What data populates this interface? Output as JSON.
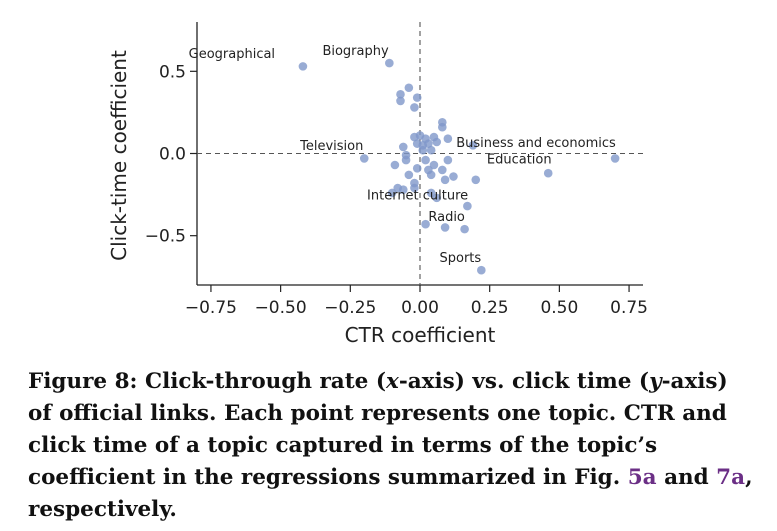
{
  "chart_data": {
    "type": "scatter",
    "title": "",
    "xlabel": "CTR coefficient",
    "ylabel": "Click-time coefficient",
    "xlim": [
      -0.8,
      0.8
    ],
    "ylim": [
      -0.8,
      0.8
    ],
    "xticks": [
      "−0.75",
      "−0.50",
      "−0.25",
      "0.00",
      "0.25",
      "0.50",
      "0.75"
    ],
    "xtick_values": [
      -0.75,
      -0.5,
      -0.25,
      0,
      0.25,
      0.5,
      0.75
    ],
    "yticks": [
      "0.5",
      "0.0",
      "−0.5"
    ],
    "ytick_values": [
      0.5,
      0,
      -0.5
    ],
    "reference_lines": {
      "x": 0,
      "y": 0
    },
    "point_color": "#7f97c9",
    "points": [
      {
        "x": -0.42,
        "y": 0.53
      },
      {
        "x": -0.11,
        "y": 0.55
      },
      {
        "x": -0.04,
        "y": 0.4
      },
      {
        "x": -0.07,
        "y": 0.36
      },
      {
        "x": -0.07,
        "y": 0.32
      },
      {
        "x": -0.01,
        "y": 0.34
      },
      {
        "x": -0.02,
        "y": 0.28
      },
      {
        "x": 0.08,
        "y": 0.19
      },
      {
        "x": 0.08,
        "y": 0.16
      },
      {
        "x": -0.02,
        "y": 0.1
      },
      {
        "x": 0.0,
        "y": 0.11
      },
      {
        "x": 0.02,
        "y": 0.09
      },
      {
        "x": 0.05,
        "y": 0.1
      },
      {
        "x": 0.1,
        "y": 0.09
      },
      {
        "x": -0.01,
        "y": 0.06
      },
      {
        "x": 0.01,
        "y": 0.05
      },
      {
        "x": 0.03,
        "y": 0.06
      },
      {
        "x": 0.06,
        "y": 0.07
      },
      {
        "x": -0.06,
        "y": 0.04
      },
      {
        "x": 0.01,
        "y": 0.02
      },
      {
        "x": 0.04,
        "y": 0.02
      },
      {
        "x": 0.19,
        "y": 0.05
      },
      {
        "x": -0.2,
        "y": -0.03
      },
      {
        "x": -0.05,
        "y": -0.01
      },
      {
        "x": -0.05,
        "y": -0.04
      },
      {
        "x": 0.02,
        "y": -0.04
      },
      {
        "x": 0.05,
        "y": -0.07
      },
      {
        "x": 0.1,
        "y": -0.04
      },
      {
        "x": -0.09,
        "y": -0.07
      },
      {
        "x": -0.01,
        "y": -0.09
      },
      {
        "x": 0.03,
        "y": -0.1
      },
      {
        "x": 0.08,
        "y": -0.1
      },
      {
        "x": 0.12,
        "y": -0.14
      },
      {
        "x": 0.2,
        "y": -0.16
      },
      {
        "x": -0.04,
        "y": -0.13
      },
      {
        "x": 0.04,
        "y": -0.13
      },
      {
        "x": 0.09,
        "y": -0.16
      },
      {
        "x": -0.02,
        "y": -0.18
      },
      {
        "x": -0.08,
        "y": -0.21
      },
      {
        "x": -0.06,
        "y": -0.22
      },
      {
        "x": -0.02,
        "y": -0.21
      },
      {
        "x": 0.04,
        "y": -0.24
      },
      {
        "x": -0.1,
        "y": -0.24
      },
      {
        "x": 0.06,
        "y": -0.27
      },
      {
        "x": 0.17,
        "y": -0.32
      },
      {
        "x": 0.02,
        "y": -0.43
      },
      {
        "x": 0.09,
        "y": -0.45
      },
      {
        "x": 0.16,
        "y": -0.46
      },
      {
        "x": 0.22,
        "y": -0.71
      },
      {
        "x": 0.46,
        "y": -0.12
      },
      {
        "x": 0.7,
        "y": -0.03
      }
    ],
    "annotations": [
      {
        "text": "Geographical",
        "x": -0.83,
        "y": 0.58
      },
      {
        "text": "Biography",
        "x": -0.35,
        "y": 0.6
      },
      {
        "text": "Television",
        "x": -0.43,
        "y": 0.02
      },
      {
        "text": "Business and economics",
        "x": 0.13,
        "y": 0.04
      },
      {
        "text": "Education",
        "x": 0.24,
        "y": -0.06
      },
      {
        "text": "Internet culture",
        "x": -0.19,
        "y": -0.28
      },
      {
        "text": "Radio",
        "x": 0.03,
        "y": -0.41
      },
      {
        "text": "Sports",
        "x": 0.07,
        "y": -0.66
      }
    ]
  },
  "caption": {
    "prefix": "Figure 8: Click-through rate (",
    "xvar": "x",
    "mid1": "-axis) vs. click time (",
    "yvar": "y",
    "mid2": "-axis) of official links. Each point represents one topic. CTR and click time of a topic captured in terms of the topic’s coefficient in the regressions summarized in Fig. ",
    "ref1": "5a",
    "and": " and ",
    "ref2": "7a",
    "suffix": ", respectively."
  }
}
